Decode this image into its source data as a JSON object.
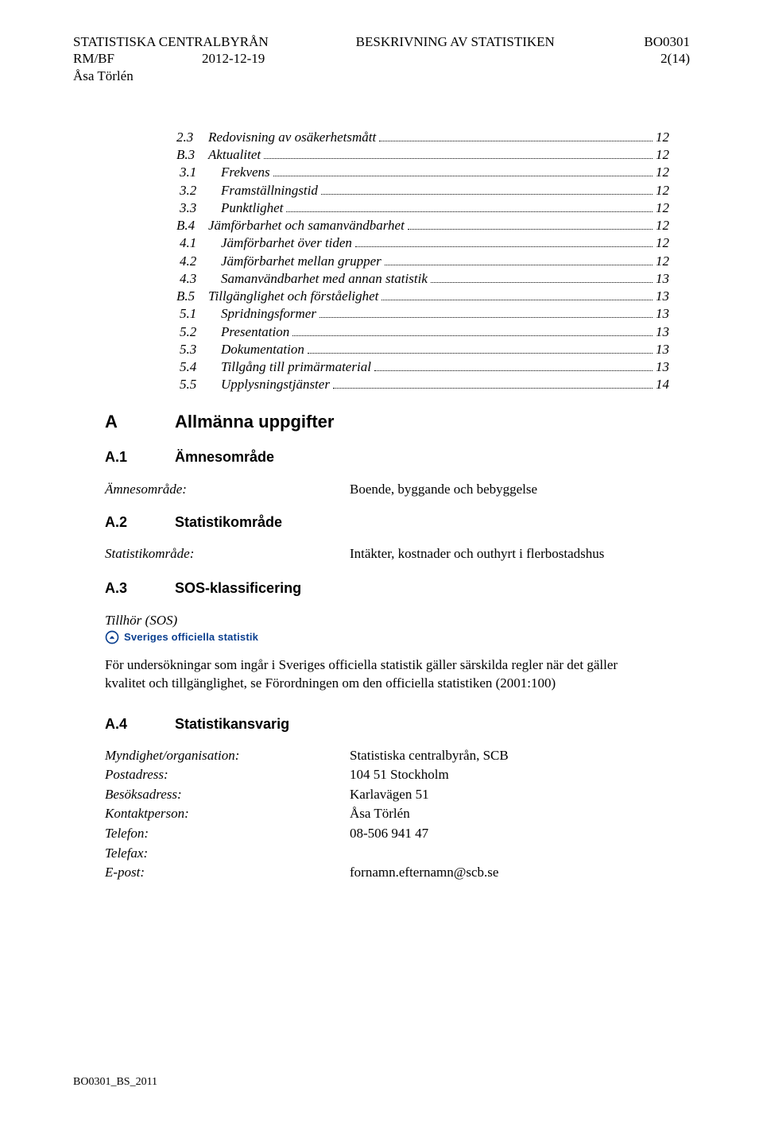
{
  "header": {
    "left_line1": "STATISTISKA CENTRALBYRÅN",
    "left_line2": "RM/BF",
    "left_line3": "Åsa Törlén",
    "mid_line1": "BESKRIVNING AV STATISTIKEN",
    "mid_line2": "2012-12-19",
    "right_line1": "BO0301",
    "right_line2": "2(14)"
  },
  "toc": [
    {
      "level": 1,
      "num": "2.3",
      "title": "Redovisning av osäkerhetsmått",
      "page": "12"
    },
    {
      "level": 1,
      "num": "B.3",
      "title": "Aktualitet",
      "page": "12"
    },
    {
      "level": 2,
      "num": "3.1",
      "title": "Frekvens",
      "page": "12"
    },
    {
      "level": 2,
      "num": "3.2",
      "title": "Framställningstid",
      "page": "12"
    },
    {
      "level": 2,
      "num": "3.3",
      "title": "Punktlighet",
      "page": "12"
    },
    {
      "level": 1,
      "num": "B.4",
      "title": "Jämförbarhet och samanvändbarhet",
      "page": "12"
    },
    {
      "level": 2,
      "num": "4.1",
      "title": "Jämförbarhet över tiden",
      "page": "12"
    },
    {
      "level": 2,
      "num": "4.2",
      "title": "Jämförbarhet mellan grupper",
      "page": "12"
    },
    {
      "level": 2,
      "num": "4.3",
      "title": "Samanvändbarhet med annan statistik",
      "page": "13"
    },
    {
      "level": 1,
      "num": "B.5",
      "title": "Tillgänglighet och förståelighet",
      "page": "13"
    },
    {
      "level": 2,
      "num": "5.1",
      "title": "Spridningsformer",
      "page": "13"
    },
    {
      "level": 2,
      "num": "5.2",
      "title": "Presentation",
      "page": "13"
    },
    {
      "level": 2,
      "num": "5.3",
      "title": "Dokumentation",
      "page": "13"
    },
    {
      "level": 2,
      "num": "5.4",
      "title": "Tillgång till primärmaterial",
      "page": "13"
    },
    {
      "level": 2,
      "num": "5.5",
      "title": "Upplysningstjänster",
      "page": "14"
    }
  ],
  "sectionA": {
    "letter": "A",
    "title": "Allmänna uppgifter",
    "sub1": {
      "num": "A.1",
      "title": "Ämnesområde",
      "label": "Ämnesområde:",
      "value": "Boende, byggande och bebyggelse"
    },
    "sub2": {
      "num": "A.2",
      "title": "Statistikområde",
      "label": "Statistikområde:",
      "value": "Intäkter, kostnader och outhyrt i flerbostadshus"
    },
    "sub3": {
      "num": "A.3",
      "title": "SOS-klassificering",
      "tillhor": "Tillhör (SOS)",
      "badge_text": "Sveriges officiella statistik",
      "badge_color": "#0a3f8f",
      "para": "För undersökningar som ingår i Sveriges officiella statistik gäller särskilda regler när det gäller kvalitet och tillgänglighet, se Förordningen om den officiella statistiken (2001:100)"
    },
    "sub4": {
      "num": "A.4",
      "title": "Statistikansvarig",
      "rows": [
        {
          "label": "Myndighet/organisation:",
          "value": "Statistiska centralbyrån, SCB"
        },
        {
          "label": "Postadress:",
          "value": "104 51 Stockholm"
        },
        {
          "label": "Besöksadress:",
          "value": "Karlavägen 51"
        },
        {
          "label": "Kontaktperson:",
          "value": "Åsa Törlén"
        },
        {
          "label": "Telefon:",
          "value": "08-506 941 47"
        },
        {
          "label": "Telefax:",
          "value": ""
        },
        {
          "label": "E-post:",
          "value": "fornamn.efternamn@scb.se"
        }
      ]
    }
  },
  "footer": "BO0301_BS_2011"
}
